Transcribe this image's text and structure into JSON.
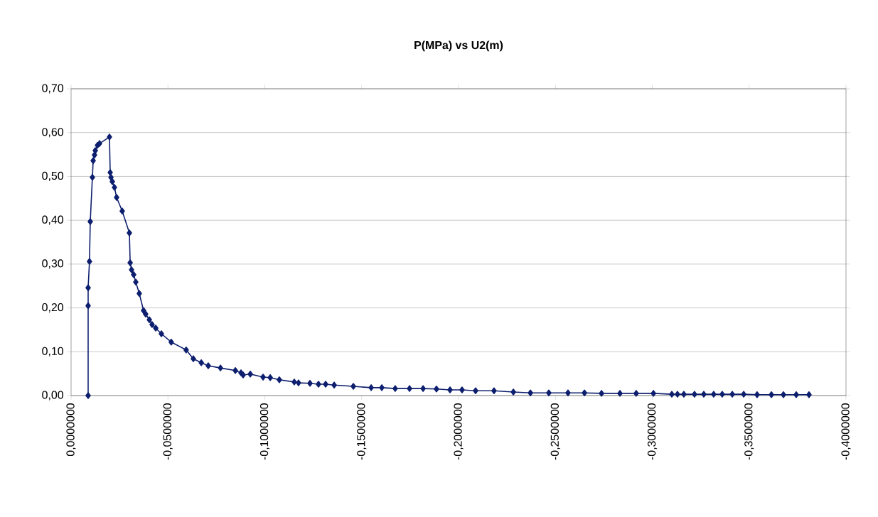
{
  "chart_data": {
    "type": "line",
    "title": "P(MPa) vs U2(m)",
    "x": [
      -0.0088,
      -0.0088,
      -0.0088,
      -0.0095,
      -0.0099,
      -0.011,
      -0.0114,
      -0.0121,
      -0.0125,
      -0.0136,
      -0.0147,
      -0.0198,
      -0.0202,
      -0.0206,
      -0.0213,
      -0.0224,
      -0.0235,
      -0.0264,
      -0.0301,
      -0.0305,
      -0.0312,
      -0.0323,
      -0.0334,
      -0.0352,
      -0.0374,
      -0.0385,
      -0.0404,
      -0.0418,
      -0.0437,
      -0.0466,
      -0.0517,
      -0.0594,
      -0.0631,
      -0.0672,
      -0.0708,
      -0.0771,
      -0.0848,
      -0.0877,
      -0.0888,
      -0.0925,
      -0.0991,
      -0.1028,
      -0.1075,
      -0.1152,
      -0.1174,
      -0.1233,
      -0.1277,
      -0.1314,
      -0.1358,
      -0.1457,
      -0.1549,
      -0.1604,
      -0.1673,
      -0.1747,
      -0.1817,
      -0.1886,
      -0.1956,
      -0.2018,
      -0.2088,
      -0.2183,
      -0.2283,
      -0.2371,
      -0.2466,
      -0.2565,
      -0.265,
      -0.2738,
      -0.2833,
      -0.2917,
      -0.3006,
      -0.3101,
      -0.313,
      -0.3163,
      -0.3218,
      -0.3266,
      -0.3317,
      -0.3361,
      -0.3413,
      -0.3472,
      -0.3541,
      -0.3615,
      -0.3677,
      -0.3743,
      -0.3809
    ],
    "series": [
      {
        "color": "#0d1f6e",
        "values": [
          0.0,
          0.205,
          0.246,
          0.306,
          0.397,
          0.498,
          0.536,
          0.549,
          0.559,
          0.571,
          0.575,
          0.59,
          0.509,
          0.498,
          0.488,
          0.475,
          0.452,
          0.421,
          0.371,
          0.303,
          0.287,
          0.276,
          0.259,
          0.233,
          0.194,
          0.186,
          0.173,
          0.162,
          0.154,
          0.141,
          0.122,
          0.104,
          0.084,
          0.075,
          0.068,
          0.063,
          0.057,
          0.052,
          0.047,
          0.049,
          0.042,
          0.041,
          0.036,
          0.031,
          0.029,
          0.028,
          0.026,
          0.026,
          0.024,
          0.021,
          0.018,
          0.018,
          0.016,
          0.016,
          0.016,
          0.015,
          0.013,
          0.013,
          0.011,
          0.011,
          0.008,
          0.006,
          0.006,
          0.006,
          0.006,
          0.005,
          0.005,
          0.005,
          0.005,
          0.003,
          0.003,
          0.003,
          0.003,
          0.003,
          0.003,
          0.003,
          0.003,
          0.003,
          0.002,
          0.002,
          0.002,
          0.002,
          0.002
        ]
      }
    ],
    "xlim": [
      0,
      -0.4
    ],
    "xticks": [
      {
        "value": 0,
        "label": "0,0000000"
      },
      {
        "value": -0.05,
        "label": "-0,0500000"
      },
      {
        "value": -0.1,
        "label": "-0,1000000"
      },
      {
        "value": -0.15,
        "label": "-0,1500000"
      },
      {
        "value": -0.2,
        "label": "-0,2000000"
      },
      {
        "value": -0.25,
        "label": "-0,2500000"
      },
      {
        "value": -0.3,
        "label": "-0,3000000"
      },
      {
        "value": -0.35,
        "label": "-0,3500000"
      },
      {
        "value": -0.4,
        "label": "-0,4000000"
      }
    ],
    "ylim": [
      0,
      0.7
    ],
    "yticks": [
      {
        "value": 0,
        "label": "0,00"
      },
      {
        "value": 0.1,
        "label": "0,10"
      },
      {
        "value": 0.2,
        "label": "0,20"
      },
      {
        "value": 0.3,
        "label": "0,30"
      },
      {
        "value": 0.4,
        "label": "0,40"
      },
      {
        "value": 0.5,
        "label": "0,50"
      },
      {
        "value": 0.6,
        "label": "0,60"
      },
      {
        "value": 0.7,
        "label": "0,70"
      }
    ],
    "grid": "y",
    "marker": "diamond",
    "line_style": "solid"
  }
}
